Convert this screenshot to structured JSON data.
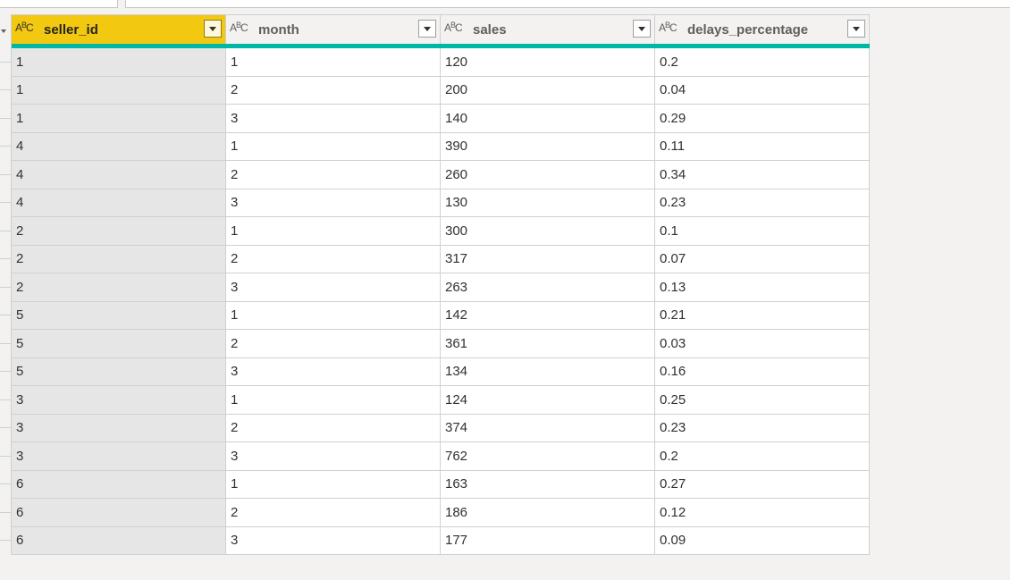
{
  "columns": [
    {
      "name": "seller_id",
      "type_icon": "text-type-icon",
      "type_main": "A",
      "type_sup": "B",
      "type_end": "C"
    },
    {
      "name": "month",
      "type_icon": "text-type-icon",
      "type_main": "A",
      "type_sup": "B",
      "type_end": "C"
    },
    {
      "name": "sales",
      "type_icon": "text-type-icon",
      "type_main": "A",
      "type_sup": "B",
      "type_end": "C"
    },
    {
      "name": "delays_percentage",
      "type_icon": "text-type-icon",
      "type_main": "A",
      "type_sup": "B",
      "type_end": "C"
    }
  ],
  "selected_column": "seller_id",
  "colors": {
    "selected_header": "#f2c811",
    "quality_bar": "#00b7a6"
  },
  "rows": [
    [
      "1",
      "1",
      "120",
      "0.2"
    ],
    [
      "1",
      "2",
      "200",
      "0.04"
    ],
    [
      "1",
      "3",
      "140",
      "0.29"
    ],
    [
      "4",
      "1",
      "390",
      "0.11"
    ],
    [
      "4",
      "2",
      "260",
      "0.34"
    ],
    [
      "4",
      "3",
      "130",
      "0.23"
    ],
    [
      "2",
      "1",
      "300",
      "0.1"
    ],
    [
      "2",
      "2",
      "317",
      "0.07"
    ],
    [
      "2",
      "3",
      "263",
      "0.13"
    ],
    [
      "5",
      "1",
      "142",
      "0.21"
    ],
    [
      "5",
      "2",
      "361",
      "0.03"
    ],
    [
      "5",
      "3",
      "134",
      "0.16"
    ],
    [
      "3",
      "1",
      "124",
      "0.25"
    ],
    [
      "3",
      "2",
      "374",
      "0.23"
    ],
    [
      "3",
      "3",
      "762",
      "0.2"
    ],
    [
      "6",
      "1",
      "163",
      "0.27"
    ],
    [
      "6",
      "2",
      "186",
      "0.12"
    ],
    [
      "6",
      "3",
      "177",
      "0.09"
    ]
  ]
}
